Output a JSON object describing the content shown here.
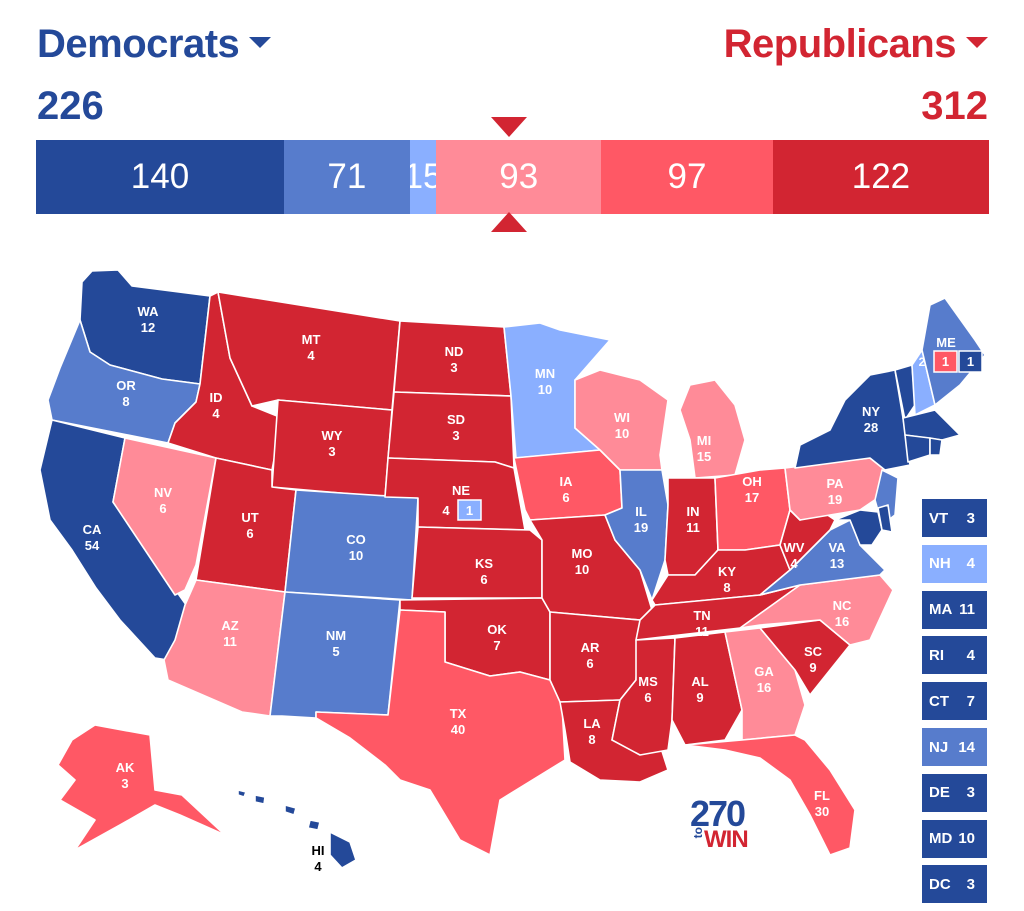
{
  "header": {
    "dem_label": "Democrats",
    "rep_label": "Republicans",
    "dem_total": "226",
    "rep_total": "312"
  },
  "colors": {
    "safe_dem": "#244999",
    "likely_dem": "#577ccc",
    "lean_dem": "#8aafff",
    "lean_rep": "#ff8b98",
    "likely_rep": "#ff5865",
    "safe_rep": "#d22532"
  },
  "bar": [
    {
      "value": 140,
      "rating": "safe_dem",
      "label": "140"
    },
    {
      "value": 71,
      "rating": "likely_dem",
      "label": "71"
    },
    {
      "value": 15,
      "rating": "lean_dem",
      "label": "15"
    },
    {
      "value": 93,
      "rating": "lean_rep",
      "label": "93"
    },
    {
      "value": 97,
      "rating": "likely_rep",
      "label": "97"
    },
    {
      "value": 122,
      "rating": "safe_rep",
      "label": "122"
    }
  ],
  "states": [
    {
      "abbr": "WA",
      "ev": "12",
      "rating": "safe_dem"
    },
    {
      "abbr": "OR",
      "ev": "8",
      "rating": "likely_dem"
    },
    {
      "abbr": "CA",
      "ev": "54",
      "rating": "safe_dem"
    },
    {
      "abbr": "NV",
      "ev": "6",
      "rating": "lean_rep"
    },
    {
      "abbr": "ID",
      "ev": "4",
      "rating": "safe_rep"
    },
    {
      "abbr": "MT",
      "ev": "4",
      "rating": "safe_rep"
    },
    {
      "abbr": "WY",
      "ev": "3",
      "rating": "safe_rep"
    },
    {
      "abbr": "UT",
      "ev": "6",
      "rating": "safe_rep"
    },
    {
      "abbr": "AZ",
      "ev": "11",
      "rating": "lean_rep"
    },
    {
      "abbr": "CO",
      "ev": "10",
      "rating": "likely_dem"
    },
    {
      "abbr": "NM",
      "ev": "5",
      "rating": "likely_dem"
    },
    {
      "abbr": "ND",
      "ev": "3",
      "rating": "safe_rep"
    },
    {
      "abbr": "SD",
      "ev": "3",
      "rating": "safe_rep"
    },
    {
      "abbr": "NE",
      "ev": "4",
      "rating": "safe_rep",
      "district_ev": "1",
      "district_rating": "lean_dem"
    },
    {
      "abbr": "KS",
      "ev": "6",
      "rating": "safe_rep"
    },
    {
      "abbr": "OK",
      "ev": "7",
      "rating": "safe_rep"
    },
    {
      "abbr": "TX",
      "ev": "40",
      "rating": "likely_rep"
    },
    {
      "abbr": "MN",
      "ev": "10",
      "rating": "lean_dem"
    },
    {
      "abbr": "IA",
      "ev": "6",
      "rating": "likely_rep"
    },
    {
      "abbr": "MO",
      "ev": "10",
      "rating": "safe_rep"
    },
    {
      "abbr": "AR",
      "ev": "6",
      "rating": "safe_rep"
    },
    {
      "abbr": "LA",
      "ev": "8",
      "rating": "safe_rep"
    },
    {
      "abbr": "WI",
      "ev": "10",
      "rating": "lean_rep"
    },
    {
      "abbr": "IL",
      "ev": "19",
      "rating": "likely_dem"
    },
    {
      "abbr": "MI",
      "ev": "15",
      "rating": "lean_rep"
    },
    {
      "abbr": "IN",
      "ev": "11",
      "rating": "safe_rep"
    },
    {
      "abbr": "OH",
      "ev": "17",
      "rating": "likely_rep"
    },
    {
      "abbr": "KY",
      "ev": "8",
      "rating": "safe_rep"
    },
    {
      "abbr": "TN",
      "ev": "11",
      "rating": "safe_rep"
    },
    {
      "abbr": "MS",
      "ev": "6",
      "rating": "safe_rep"
    },
    {
      "abbr": "AL",
      "ev": "9",
      "rating": "safe_rep"
    },
    {
      "abbr": "GA",
      "ev": "16",
      "rating": "lean_rep"
    },
    {
      "abbr": "FL",
      "ev": "30",
      "rating": "likely_rep"
    },
    {
      "abbr": "SC",
      "ev": "9",
      "rating": "safe_rep"
    },
    {
      "abbr": "NC",
      "ev": "16",
      "rating": "lean_rep"
    },
    {
      "abbr": "VA",
      "ev": "13",
      "rating": "likely_dem"
    },
    {
      "abbr": "WV",
      "ev": "4",
      "rating": "safe_rep"
    },
    {
      "abbr": "PA",
      "ev": "19",
      "rating": "lean_rep"
    },
    {
      "abbr": "NY",
      "ev": "28",
      "rating": "safe_dem"
    },
    {
      "abbr": "ME",
      "ev": "2",
      "rating": "likely_dem",
      "district1_ev": "1",
      "district1_rating": "likely_rep",
      "district2_ev": "1",
      "district2_rating": "safe_dem"
    },
    {
      "abbr": "AK",
      "ev": "3",
      "rating": "likely_rep"
    },
    {
      "abbr": "HI",
      "ev": "4",
      "rating": "safe_dem"
    }
  ],
  "side_states": [
    {
      "abbr": "VT",
      "ev": "3",
      "rating": "safe_dem"
    },
    {
      "abbr": "NH",
      "ev": "4",
      "rating": "lean_dem"
    },
    {
      "abbr": "MA",
      "ev": "11",
      "rating": "safe_dem"
    },
    {
      "abbr": "RI",
      "ev": "4",
      "rating": "safe_dem"
    },
    {
      "abbr": "CT",
      "ev": "7",
      "rating": "safe_dem"
    },
    {
      "abbr": "NJ",
      "ev": "14",
      "rating": "likely_dem"
    },
    {
      "abbr": "DE",
      "ev": "3",
      "rating": "safe_dem"
    },
    {
      "abbr": "MD",
      "ev": "10",
      "rating": "safe_dem"
    },
    {
      "abbr": "DC",
      "ev": "3",
      "rating": "safe_dem"
    }
  ],
  "logo": {
    "number": "270",
    "to": "to",
    "win": "WIN"
  }
}
